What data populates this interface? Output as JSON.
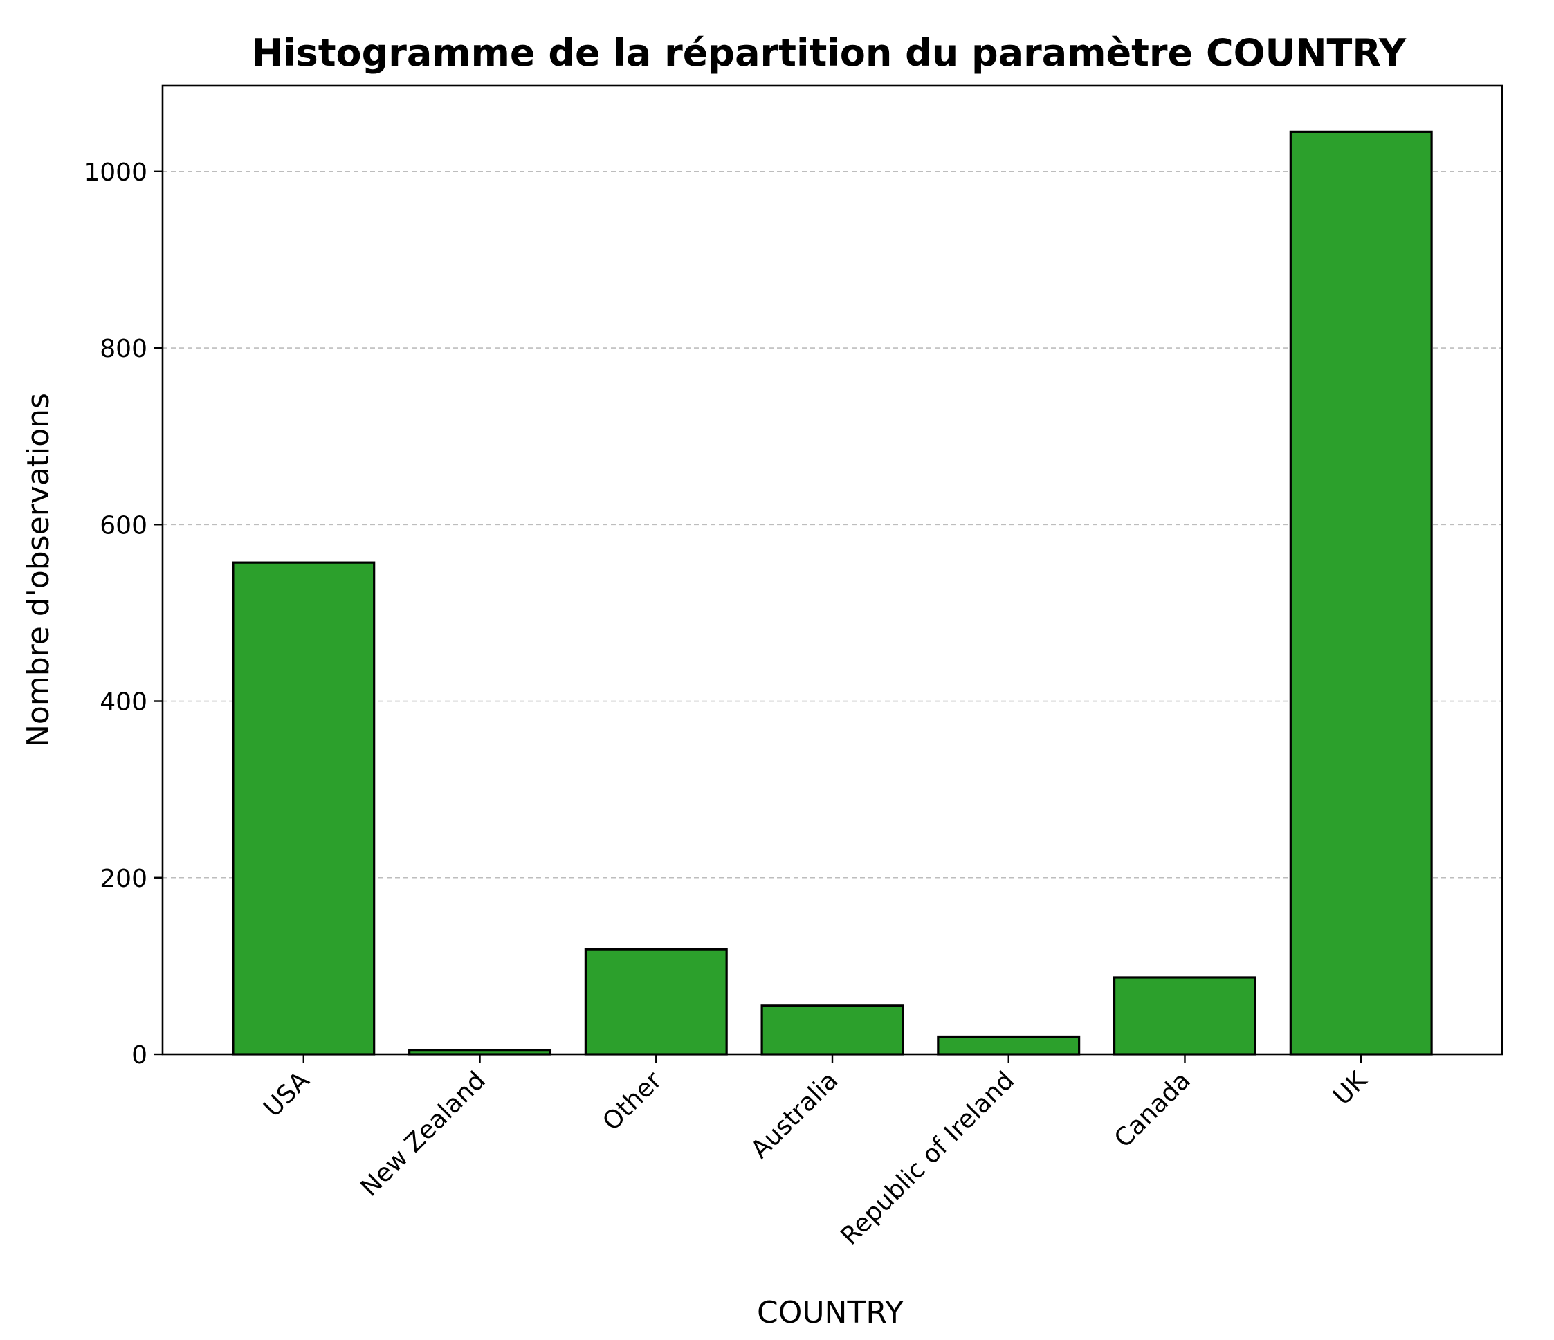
{
  "chart_data": {
    "type": "bar",
    "title": "Histogramme de la répartition du paramètre COUNTRY",
    "xlabel": "COUNTRY",
    "ylabel": "Nombre d'observations",
    "categories": [
      "USA",
      "New Zealand",
      "Other",
      "Australia",
      "Republic of Ireland",
      "Canada",
      "UK"
    ],
    "values": [
      557,
      5,
      119,
      55,
      20,
      87,
      1045
    ],
    "ylim": [
      0,
      1097
    ],
    "yticks": [
      0,
      200,
      400,
      600,
      800,
      1000
    ],
    "grid": "y-dashed",
    "bar_color": "#2ca02c",
    "edge_color": "#000000"
  }
}
